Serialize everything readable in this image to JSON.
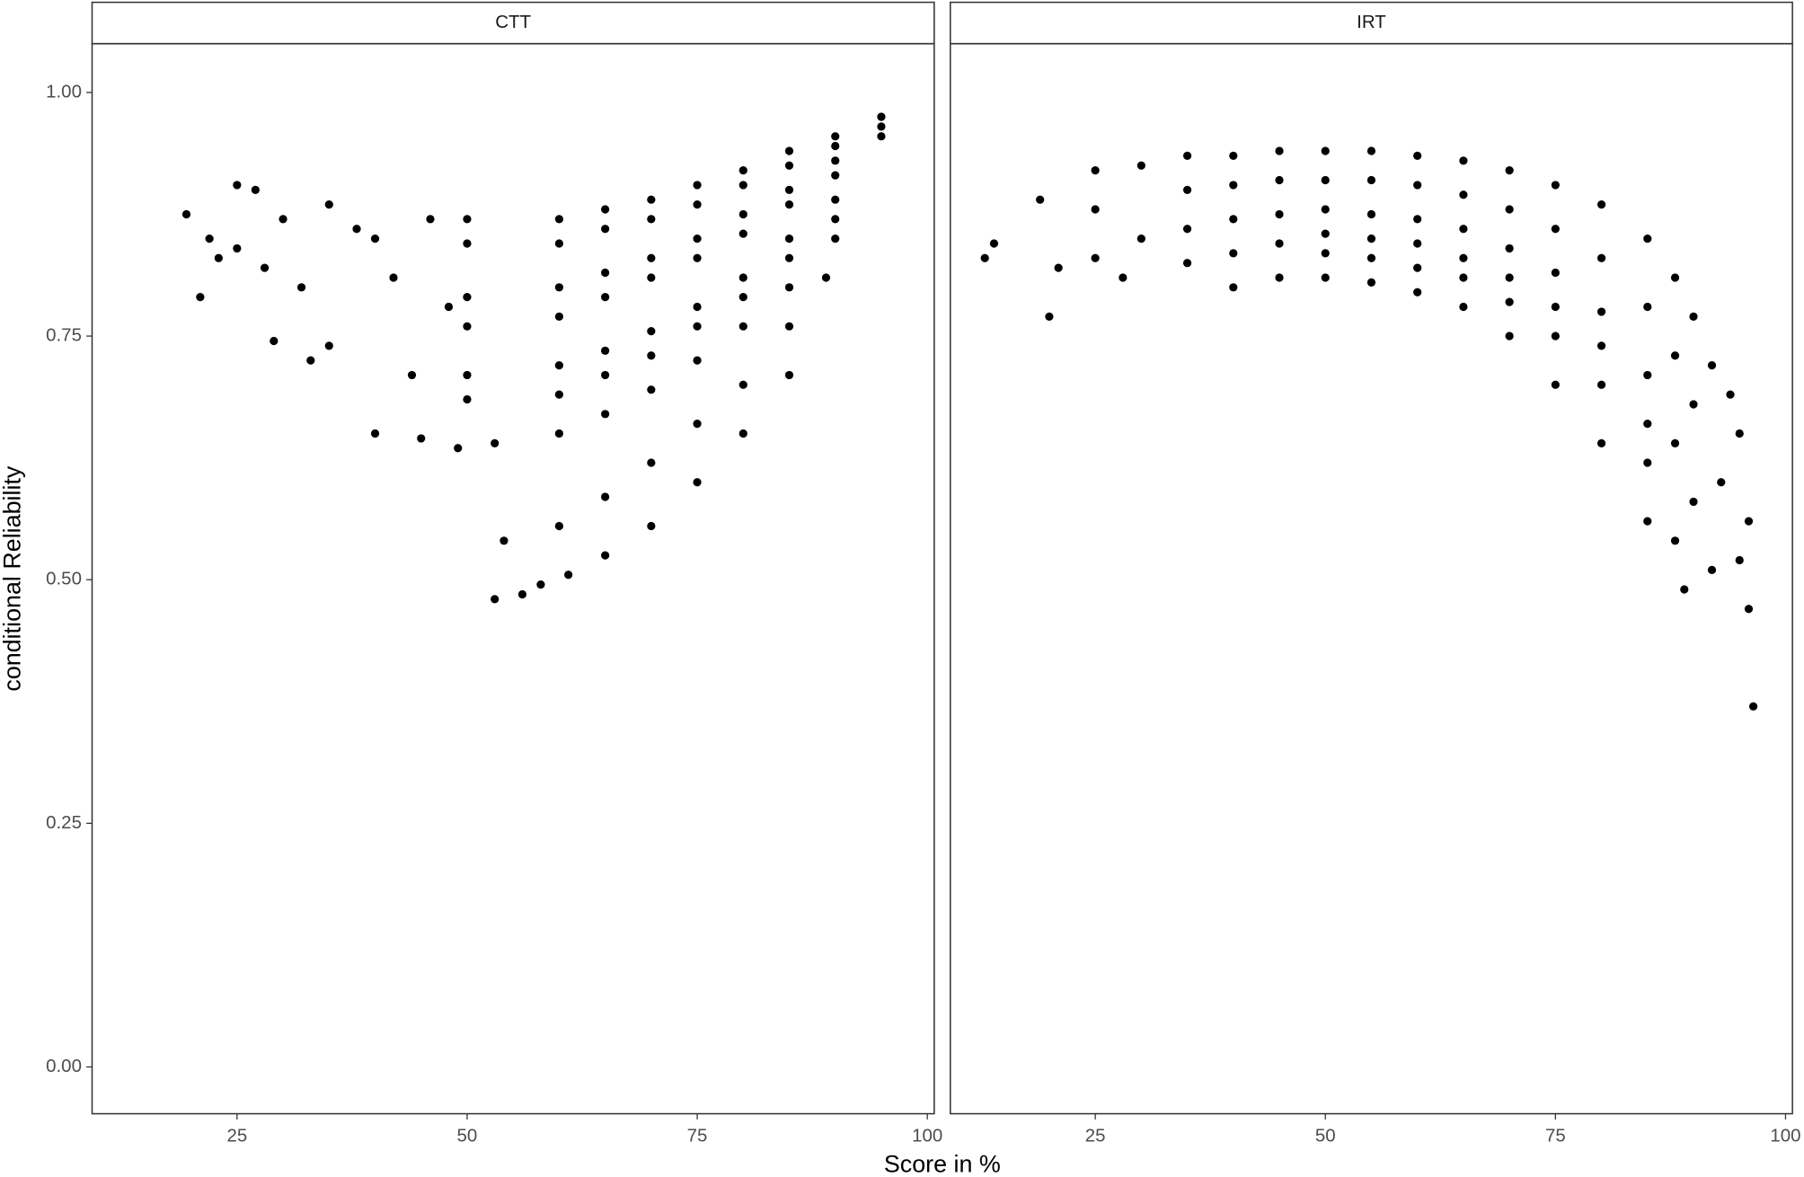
{
  "chart_data": [
    {
      "type": "scatter",
      "title": "CTT",
      "ylabel": "conditional Reliability",
      "xlabel": "Score in %",
      "color": "#000000",
      "xlim": [
        9.25,
        100.75
      ],
      "ylim": [
        -0.048,
        1.05
      ],
      "xticks": [
        25,
        50,
        75,
        100
      ],
      "yticks": [
        {
          "value": 0,
          "label": "0.00"
        },
        {
          "value": 0.25,
          "label": "0.25"
        },
        {
          "value": 0.5,
          "label": "0.50"
        },
        {
          "value": 0.75,
          "label": "0.75"
        },
        {
          "value": 1,
          "label": "1.00"
        }
      ],
      "grid": false,
      "x": [
        19.5,
        21,
        22,
        23,
        25,
        25,
        27,
        28,
        29,
        30,
        32,
        33,
        35,
        35,
        38,
        40,
        40,
        42,
        44,
        45,
        46,
        48,
        49,
        50,
        50,
        50,
        50,
        50,
        50,
        53,
        53,
        54,
        56,
        58,
        60,
        60,
        60,
        60,
        60,
        60,
        60,
        60,
        61,
        65,
        65,
        65,
        65,
        65,
        65,
        65,
        65,
        65,
        70,
        70,
        70,
        70,
        70,
        70,
        70,
        70,
        70,
        75,
        75,
        75,
        75,
        75,
        75,
        75,
        75,
        75,
        80,
        80,
        80,
        80,
        80,
        80,
        80,
        80,
        80,
        85,
        85,
        85,
        85,
        85,
        85,
        85,
        85,
        85,
        90,
        90,
        90,
        90,
        90,
        90,
        90,
        89,
        95,
        95,
        95
      ],
      "values": [
        0.875,
        0.79,
        0.85,
        0.83,
        0.905,
        0.84,
        0.9,
        0.82,
        0.745,
        0.87,
        0.8,
        0.725,
        0.885,
        0.74,
        0.86,
        0.65,
        0.85,
        0.81,
        0.71,
        0.645,
        0.87,
        0.78,
        0.635,
        0.87,
        0.845,
        0.79,
        0.76,
        0.71,
        0.685,
        0.64,
        0.48,
        0.54,
        0.485,
        0.495,
        0.87,
        0.845,
        0.8,
        0.77,
        0.72,
        0.69,
        0.65,
        0.555,
        0.505,
        0.88,
        0.86,
        0.815,
        0.79,
        0.735,
        0.71,
        0.67,
        0.585,
        0.525,
        0.89,
        0.87,
        0.83,
        0.81,
        0.755,
        0.73,
        0.695,
        0.62,
        0.555,
        0.905,
        0.885,
        0.85,
        0.83,
        0.78,
        0.76,
        0.725,
        0.66,
        0.6,
        0.92,
        0.905,
        0.875,
        0.855,
        0.81,
        0.79,
        0.76,
        0.7,
        0.65,
        0.94,
        0.925,
        0.9,
        0.885,
        0.85,
        0.83,
        0.8,
        0.76,
        0.71,
        0.955,
        0.945,
        0.93,
        0.915,
        0.89,
        0.87,
        0.85,
        0.81,
        0.975,
        0.965,
        0.955
      ]
    },
    {
      "type": "scatter",
      "title": "IRT",
      "color": "#000000",
      "xlim": [
        9.25,
        100.75
      ],
      "ylim": [
        -0.048,
        1.05
      ],
      "xticks": [
        25,
        50,
        75,
        100
      ],
      "grid": false,
      "x": [
        13,
        14,
        19,
        20,
        21,
        25,
        25,
        25,
        28,
        30,
        30,
        35,
        35,
        35,
        35,
        40,
        40,
        40,
        40,
        40,
        45,
        45,
        45,
        45,
        45,
        50,
        50,
        50,
        50,
        50,
        50,
        55,
        55,
        55,
        55,
        55,
        55,
        60,
        60,
        60,
        60,
        60,
        60,
        65,
        65,
        65,
        65,
        65,
        65,
        70,
        70,
        70,
        70,
        70,
        70,
        75,
        75,
        75,
        75,
        75,
        75,
        80,
        80,
        80,
        80,
        80,
        80,
        85,
        85,
        85,
        85,
        85,
        85,
        88,
        88,
        88,
        88,
        89,
        90,
        90,
        90,
        92,
        92,
        93,
        94,
        95,
        95,
        96,
        96,
        96.5
      ],
      "values": [
        0.83,
        0.845,
        0.89,
        0.77,
        0.82,
        0.92,
        0.88,
        0.83,
        0.81,
        0.925,
        0.85,
        0.935,
        0.9,
        0.86,
        0.825,
        0.935,
        0.905,
        0.87,
        0.835,
        0.8,
        0.94,
        0.91,
        0.875,
        0.845,
        0.81,
        0.94,
        0.91,
        0.88,
        0.855,
        0.835,
        0.81,
        0.94,
        0.91,
        0.875,
        0.85,
        0.83,
        0.805,
        0.935,
        0.905,
        0.87,
        0.845,
        0.82,
        0.795,
        0.93,
        0.895,
        0.86,
        0.83,
        0.81,
        0.78,
        0.92,
        0.88,
        0.84,
        0.81,
        0.785,
        0.75,
        0.905,
        0.86,
        0.815,
        0.78,
        0.75,
        0.7,
        0.885,
        0.83,
        0.775,
        0.74,
        0.7,
        0.64,
        0.85,
        0.78,
        0.71,
        0.66,
        0.62,
        0.56,
        0.81,
        0.73,
        0.64,
        0.54,
        0.49,
        0.77,
        0.68,
        0.58,
        0.51,
        0.72,
        0.6,
        0.69,
        0.65,
        0.52,
        0.47,
        0.56,
        0.37
      ]
    }
  ]
}
